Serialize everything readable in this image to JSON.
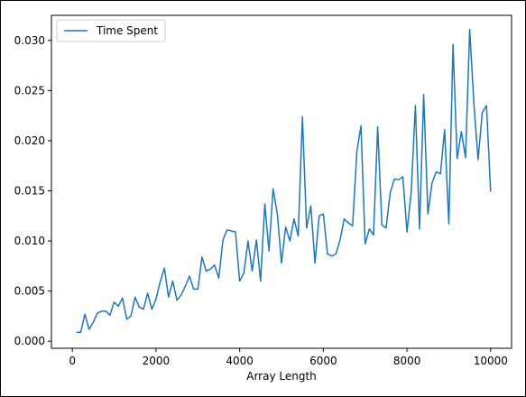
{
  "chart_data": {
    "type": "line",
    "xlabel": "Array Length",
    "ylabel": "",
    "title": "",
    "xlim": [
      -500,
      10500
    ],
    "ylim": [
      -0.0007,
      0.0325
    ],
    "x_ticks": [
      "0",
      "2000",
      "4000",
      "6000",
      "8000",
      "10000"
    ],
    "x_tick_values": [
      0,
      2000,
      4000,
      6000,
      8000,
      10000
    ],
    "y_ticks": [
      "0.000",
      "0.005",
      "0.010",
      "0.015",
      "0.020",
      "0.025",
      "0.030"
    ],
    "y_tick_values": [
      0,
      0.005,
      0.01,
      0.015,
      0.02,
      0.025,
      0.03
    ],
    "legend_position": "upper-left",
    "grid": false,
    "series": [
      {
        "name": "Time Spent",
        "color": "#1f77b4",
        "x": [
          100,
          200,
          300,
          400,
          500,
          600,
          700,
          800,
          900,
          1000,
          1100,
          1200,
          1300,
          1400,
          1500,
          1600,
          1700,
          1800,
          1900,
          2000,
          2100,
          2200,
          2300,
          2400,
          2500,
          2600,
          2700,
          2800,
          2900,
          3000,
          3100,
          3200,
          3300,
          3400,
          3500,
          3600,
          3700,
          3800,
          3900,
          4000,
          4100,
          4200,
          4300,
          4400,
          4500,
          4600,
          4700,
          4800,
          4900,
          5000,
          5100,
          5200,
          5300,
          5400,
          5500,
          5600,
          5700,
          5800,
          5900,
          6000,
          6100,
          6200,
          6300,
          6400,
          6500,
          6600,
          6700,
          6800,
          6900,
          7000,
          7100,
          7200,
          7300,
          7400,
          7500,
          7600,
          7700,
          7800,
          7900,
          8000,
          8100,
          8200,
          8300,
          8400,
          8500,
          8600,
          8700,
          8800,
          8900,
          9000,
          9100,
          9200,
          9300,
          9400,
          9500,
          9600,
          9700,
          9800,
          9900,
          10000
        ],
        "y": [
          0.0009,
          0.0009,
          0.0027,
          0.0012,
          0.0019,
          0.0028,
          0.003,
          0.003,
          0.0026,
          0.0039,
          0.0035,
          0.0043,
          0.0022,
          0.0025,
          0.0044,
          0.0034,
          0.0032,
          0.0048,
          0.0032,
          0.0042,
          0.0059,
          0.0073,
          0.0044,
          0.006,
          0.0041,
          0.0046,
          0.0055,
          0.0065,
          0.0052,
          0.0052,
          0.0084,
          0.007,
          0.0072,
          0.0076,
          0.0063,
          0.0101,
          0.0111,
          0.011,
          0.0109,
          0.006,
          0.0068,
          0.01,
          0.007,
          0.0101,
          0.006,
          0.0137,
          0.009,
          0.0152,
          0.0127,
          0.0078,
          0.0114,
          0.01,
          0.0122,
          0.0105,
          0.0224,
          0.0113,
          0.0135,
          0.0078,
          0.0125,
          0.0127,
          0.0087,
          0.0085,
          0.0087,
          0.0101,
          0.0122,
          0.0118,
          0.0115,
          0.0189,
          0.0215,
          0.0097,
          0.0112,
          0.0106,
          0.0214,
          0.0116,
          0.0113,
          0.0148,
          0.0162,
          0.0161,
          0.0164,
          0.0109,
          0.0148,
          0.0235,
          0.0112,
          0.0246,
          0.0127,
          0.0158,
          0.0169,
          0.0167,
          0.0211,
          0.0117,
          0.0296,
          0.0182,
          0.0209,
          0.0183,
          0.0311,
          0.0236,
          0.0181,
          0.0228,
          0.0235,
          0.0149
        ]
      }
    ]
  }
}
